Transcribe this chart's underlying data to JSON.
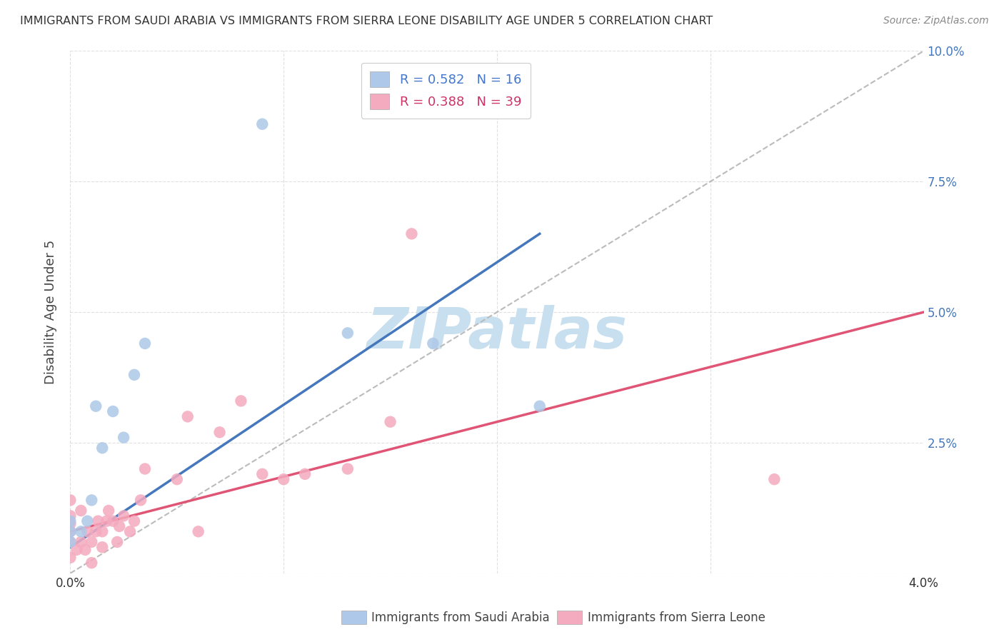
{
  "title": "IMMIGRANTS FROM SAUDI ARABIA VS IMMIGRANTS FROM SIERRA LEONE DISABILITY AGE UNDER 5 CORRELATION CHART",
  "source": "Source: ZipAtlas.com",
  "ylabel": "Disability Age Under 5",
  "x_min": 0.0,
  "x_max": 0.04,
  "y_min": 0.0,
  "y_max": 0.1,
  "x_ticks": [
    0.0,
    0.01,
    0.02,
    0.03,
    0.04
  ],
  "x_tick_labels": [
    "0.0%",
    "",
    "",
    "",
    "4.0%"
  ],
  "y_ticks": [
    0.0,
    0.025,
    0.05,
    0.075,
    0.1
  ],
  "y_tick_labels_right": [
    "",
    "2.5%",
    "5.0%",
    "7.5%",
    "10.0%"
  ],
  "saudi_color": "#adc8e8",
  "sierra_color": "#f4aabf",
  "saudi_R": 0.582,
  "saudi_N": 16,
  "sierra_R": 0.388,
  "sierra_N": 39,
  "saudi_scatter_x": [
    0.0,
    0.0,
    0.0,
    0.0005,
    0.0008,
    0.001,
    0.0012,
    0.0015,
    0.002,
    0.0025,
    0.003,
    0.0035,
    0.009,
    0.013,
    0.017,
    0.022
  ],
  "saudi_scatter_y": [
    0.006,
    0.008,
    0.01,
    0.008,
    0.01,
    0.014,
    0.032,
    0.024,
    0.031,
    0.026,
    0.038,
    0.044,
    0.086,
    0.046,
    0.044,
    0.032
  ],
  "sierra_scatter_x": [
    0.0,
    0.0,
    0.0,
    0.0,
    0.0,
    0.0,
    0.0003,
    0.0005,
    0.0005,
    0.0007,
    0.0008,
    0.001,
    0.001,
    0.0012,
    0.0013,
    0.0015,
    0.0015,
    0.0017,
    0.0018,
    0.002,
    0.0022,
    0.0023,
    0.0025,
    0.0028,
    0.003,
    0.0033,
    0.0035,
    0.005,
    0.0055,
    0.006,
    0.007,
    0.008,
    0.009,
    0.01,
    0.011,
    0.013,
    0.015,
    0.016,
    0.033
  ],
  "sierra_scatter_y": [
    0.003,
    0.006,
    0.008,
    0.0095,
    0.011,
    0.014,
    0.0045,
    0.006,
    0.012,
    0.0045,
    0.008,
    0.002,
    0.006,
    0.008,
    0.01,
    0.005,
    0.008,
    0.01,
    0.012,
    0.01,
    0.006,
    0.009,
    0.011,
    0.008,
    0.01,
    0.014,
    0.02,
    0.018,
    0.03,
    0.008,
    0.027,
    0.033,
    0.019,
    0.018,
    0.019,
    0.02,
    0.029,
    0.065,
    0.018
  ],
  "saudi_trend_x0": 0.0,
  "saudi_trend_y0": 0.005,
  "saudi_trend_x1": 0.022,
  "saudi_trend_y1": 0.065,
  "sierra_trend_x0": 0.0,
  "sierra_trend_y0": 0.008,
  "sierra_trend_x1": 0.04,
  "sierra_trend_y1": 0.05,
  "watermark": "ZIPatlas",
  "watermark_color": "#c8dff0",
  "background_color": "#ffffff",
  "grid_color": "#dddddd",
  "trend_line_saudi_color": "#4477bb",
  "trend_line_sierra_color": "#e05575",
  "trend_dashed_color": "#bbbbbb",
  "legend_saudi_text_color": "#4477cc",
  "legend_sierra_text_color": "#cc3366"
}
